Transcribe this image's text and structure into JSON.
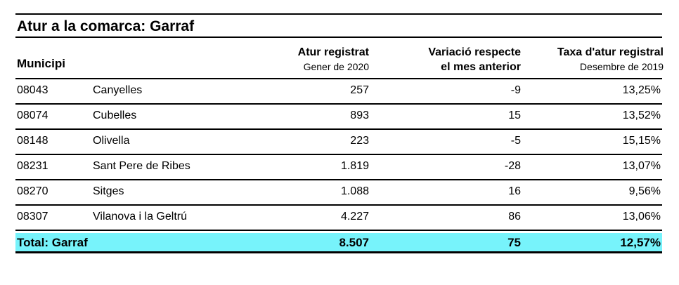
{
  "title": "Atur a la comarca:  Garraf",
  "headers": {
    "municipi": "Municipi",
    "atur": "Atur registrat",
    "atur_sub": "Gener de 2020",
    "variacio_l1": "Variació respecte",
    "variacio_l2": "el mes anterior",
    "taxa": "Taxa d'atur registral",
    "taxa_sub": "Desembre de 2019"
  },
  "rows": [
    {
      "code": "08043",
      "name": "Canyelles",
      "atur": "257",
      "variacio": "-9",
      "taxa": "13,25%"
    },
    {
      "code": "08074",
      "name": "Cubelles",
      "atur": "893",
      "variacio": "15",
      "taxa": "13,52%"
    },
    {
      "code": "08148",
      "name": "Olivella",
      "atur": "223",
      "variacio": "-5",
      "taxa": "15,15%"
    },
    {
      "code": "08231",
      "name": "Sant Pere de Ribes",
      "atur": "1.819",
      "variacio": "-28",
      "taxa": "13,07%"
    },
    {
      "code": "08270",
      "name": "Sitges",
      "atur": "1.088",
      "variacio": "16",
      "taxa": "9,56%"
    },
    {
      "code": "08307",
      "name": "Vilanova i la Geltrú",
      "atur": "4.227",
      "variacio": "86",
      "taxa": "13,06%"
    }
  ],
  "total": {
    "label": "Total:  Garraf",
    "atur": "8.507",
    "variacio": "75",
    "taxa": "12,57%"
  },
  "colors": {
    "total_bg": "#77f3fb"
  }
}
